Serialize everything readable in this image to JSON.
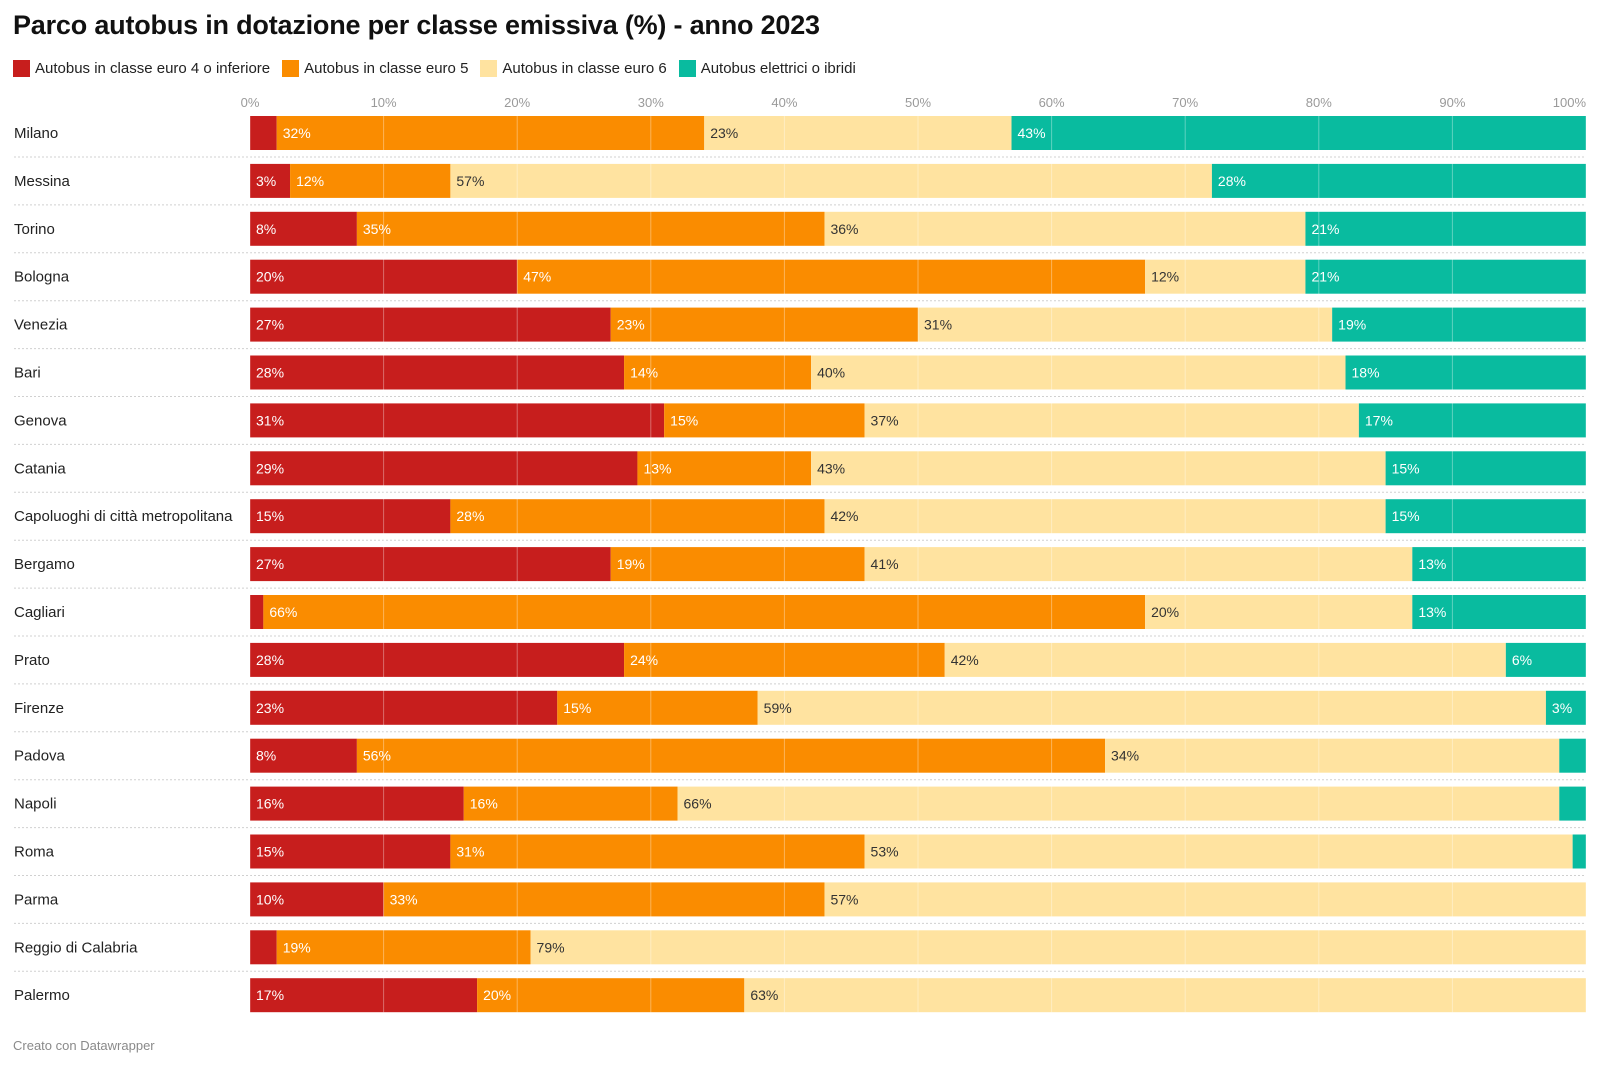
{
  "title": "Parco autobus in dotazione per classe emissiva (%) - anno 2023",
  "footer": "Creato con Datawrapper",
  "chart_data": {
    "type": "bar",
    "orientation": "horizontal",
    "stacked": true,
    "title": "Parco autobus in dotazione per classe emissiva (%) - anno 2023",
    "xlim": [
      0,
      100
    ],
    "x_ticks": [
      "0%",
      "10%",
      "20%",
      "30%",
      "40%",
      "50%",
      "60%",
      "70%",
      "80%",
      "90%",
      "100%"
    ],
    "grid": true,
    "legend_position": "top-left",
    "categories": [
      "Milano",
      "Messina",
      "Torino",
      "Bologna",
      "Venezia",
      "Bari",
      "Genova",
      "Catania",
      "Capoluoghi di città metropolitana",
      "Bergamo",
      "Cagliari",
      "Prato",
      "Firenze",
      "Padova",
      "Napoli",
      "Roma",
      "Parma",
      "Reggio di Calabria",
      "Palermo"
    ],
    "series": [
      {
        "name": "Autobus in classe euro 4 o inferiore",
        "color": "#c71e1d",
        "values": [
          2,
          3,
          8,
          20,
          27,
          28,
          31,
          29,
          15,
          27,
          1,
          28,
          23,
          8,
          16,
          15,
          10,
          2,
          17
        ],
        "labels": [
          "",
          "3%",
          "8%",
          "20%",
          "27%",
          "28%",
          "31%",
          "29%",
          "15%",
          "27%",
          "",
          "28%",
          "23%",
          "8%",
          "16%",
          "15%",
          "10%",
          "",
          "17%"
        ]
      },
      {
        "name": "Autobus in classe euro 5",
        "color": "#fa8c00",
        "values": [
          32,
          12,
          35,
          47,
          23,
          14,
          15,
          13,
          28,
          19,
          66,
          24,
          15,
          56,
          16,
          31,
          33,
          19,
          20
        ],
        "labels": [
          "32%",
          "12%",
          "35%",
          "47%",
          "23%",
          "14%",
          "15%",
          "13%",
          "28%",
          "19%",
          "66%",
          "24%",
          "15%",
          "56%",
          "16%",
          "31%",
          "33%",
          "19%",
          "20%"
        ]
      },
      {
        "name": "Autobus in classe euro 6",
        "color": "#ffe3a0",
        "values": [
          23,
          57,
          36,
          12,
          31,
          40,
          37,
          43,
          42,
          41,
          20,
          42,
          59,
          34,
          66,
          53,
          57,
          79,
          63
        ],
        "labels": [
          "23%",
          "57%",
          "36%",
          "12%",
          "31%",
          "40%",
          "37%",
          "43%",
          "42%",
          "41%",
          "20%",
          "42%",
          "59%",
          "34%",
          "66%",
          "53%",
          "57%",
          "79%",
          "63%"
        ]
      },
      {
        "name": "Autobus elettrici o ibridi",
        "color": "#09bb9f",
        "values": [
          43,
          28,
          21,
          21,
          19,
          18,
          17,
          15,
          15,
          13,
          13,
          6,
          3,
          2,
          2,
          1,
          0,
          0,
          0
        ],
        "labels": [
          "43%",
          "28%",
          "21%",
          "21%",
          "19%",
          "18%",
          "17%",
          "15%",
          "15%",
          "13%",
          "13%",
          "6%",
          "3%",
          "",
          "",
          "",
          "",
          "",
          ""
        ]
      }
    ]
  }
}
